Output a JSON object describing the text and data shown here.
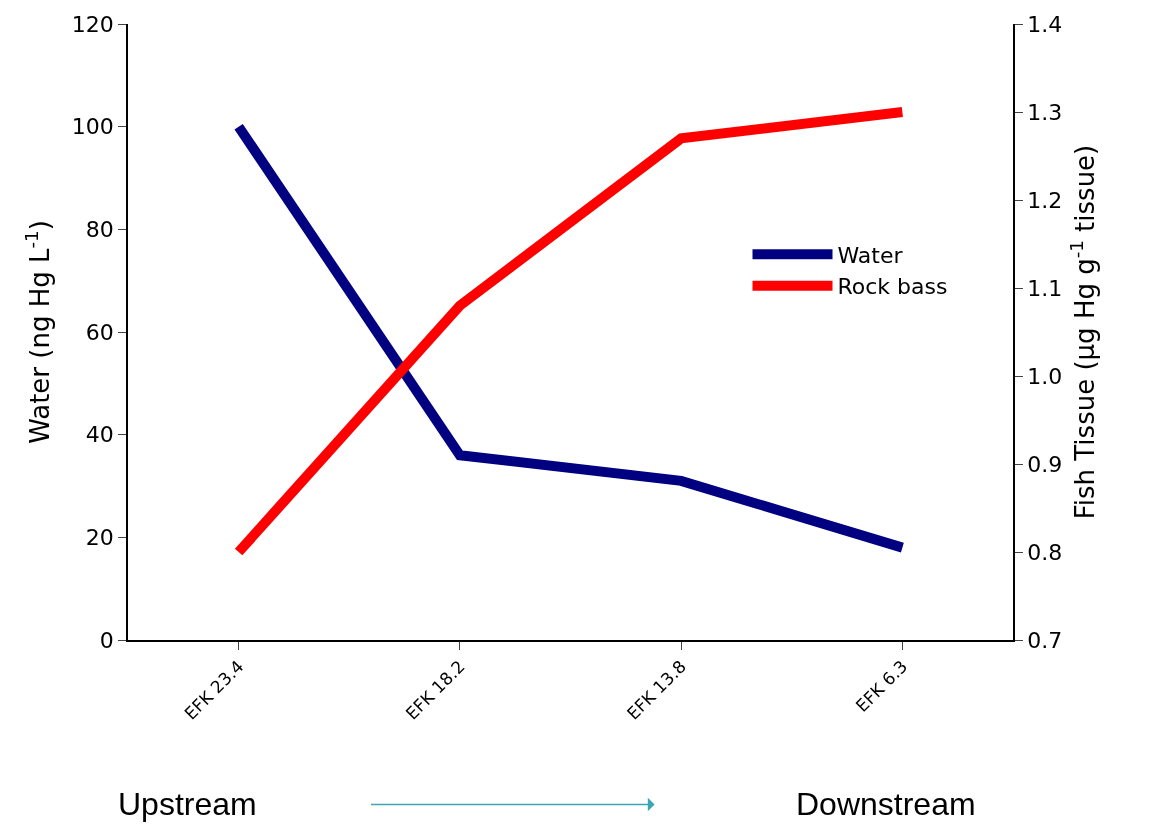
{
  "chart_data": {
    "type": "line",
    "categories": [
      "EFK 23.4",
      "EFK 18.2",
      "EFK 13.8",
      "EFK 6.3"
    ],
    "ylabel": "Water (ng Hg L$^{-1}$)",
    "y2label": "Fish Tissue (µg Hg g$^{-1}$ tissue)",
    "series": [
      {
        "name": "Water",
        "color": "#000080",
        "values": [
          100,
          36,
          31,
          18
        ]
      },
      {
        "name": "Rock bass",
        "color": "#ff0000",
        "values": [
          0.8,
          1.08,
          1.27,
          1.3
        ],
        "axis": "y2"
      }
    ],
    "ylim": [
      0,
      120
    ],
    "yticks": [
      0,
      20,
      40,
      60,
      80,
      100,
      120
    ],
    "y2lim": [
      0.7,
      1.4
    ],
    "y2ticks": [
      {
        "value": 0.7,
        "label": "0.7"
      },
      {
        "value": 0.8,
        "label": "0.8"
      },
      {
        "value": 0.9,
        "label": "0.9"
      },
      {
        "value": 1.0,
        "label": "1.0"
      },
      {
        "value": 1.1,
        "label": "1.1"
      },
      {
        "value": 1.2,
        "label": "1.2"
      },
      {
        "value": 1.3,
        "label": "1.3"
      },
      {
        "value": 1.4,
        "label": "1.4"
      }
    ],
    "annotations": [
      "Upstream",
      "Downstream"
    ],
    "legend": "right",
    "marker": "none",
    "line_style": "solid"
  }
}
